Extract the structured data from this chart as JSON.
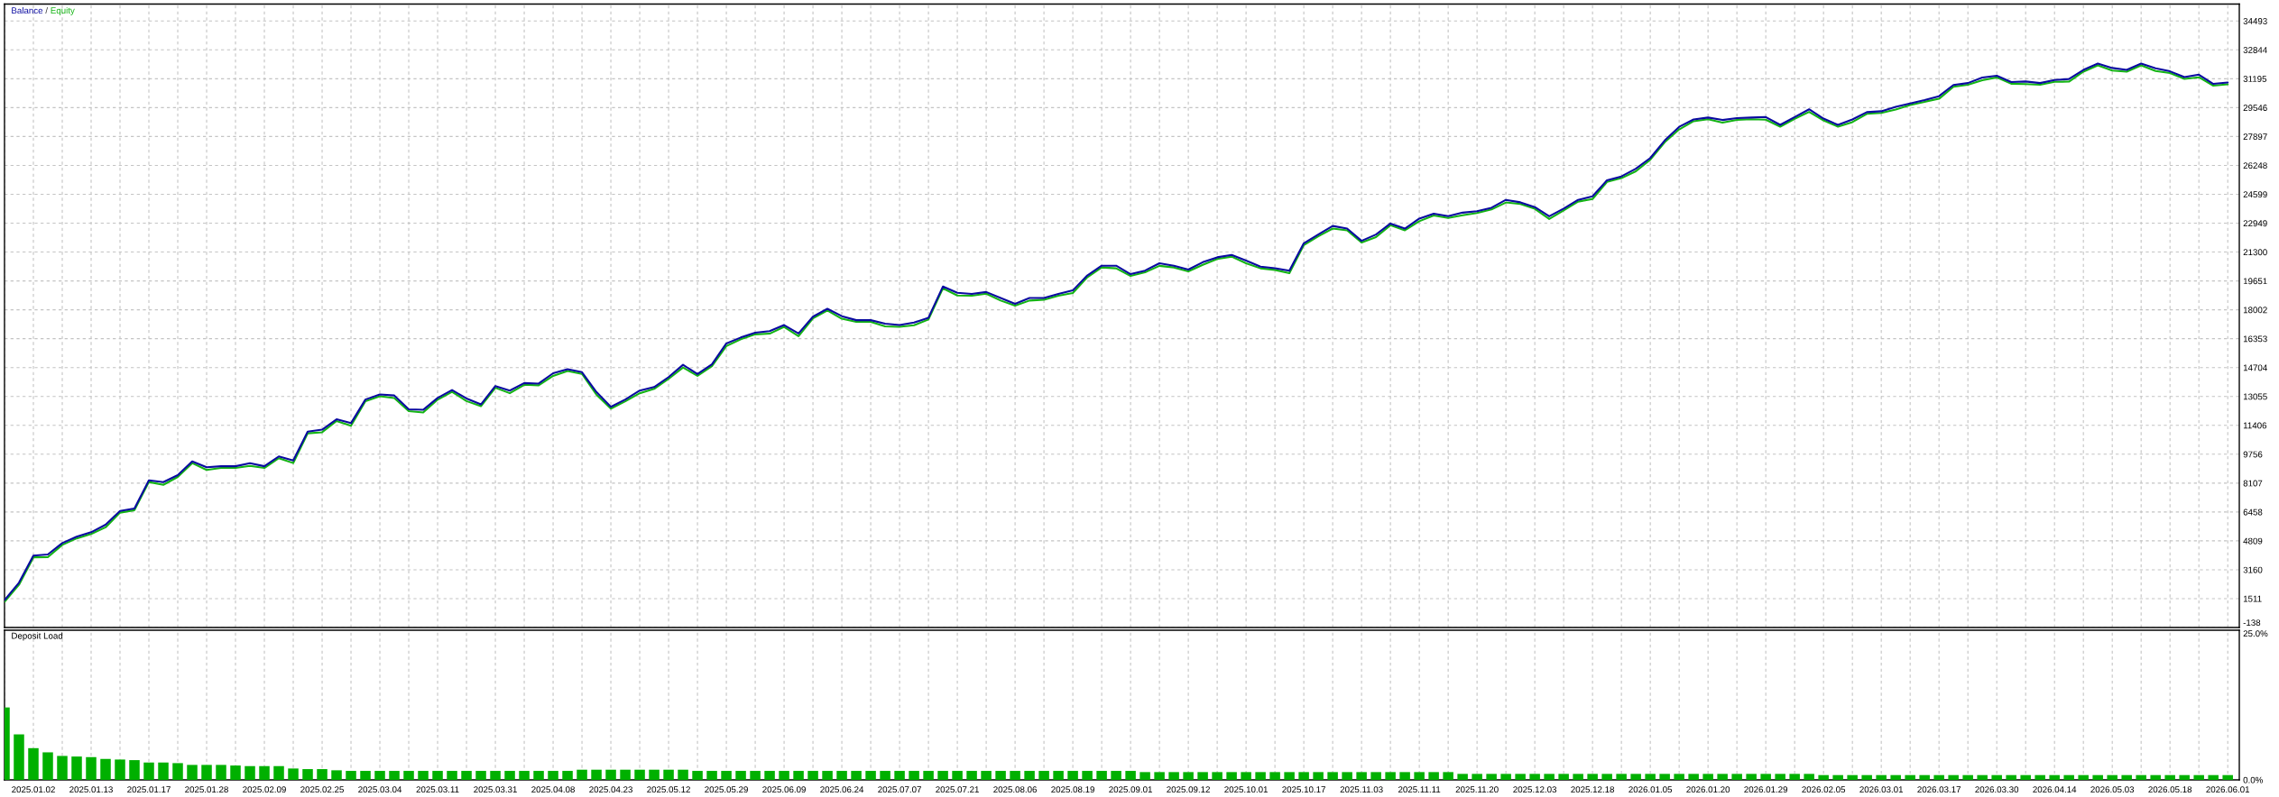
{
  "chart_data": [
    {
      "type": "line",
      "legend": "top left",
      "tick_labels": "y",
      "grid": true,
      "annotations": [
        "/"
      ],
      "categories": [
        null,
        null,
        "2025.01.02",
        null,
        null,
        null,
        "2025.01.13",
        null,
        null,
        null,
        "2025.01.17",
        null,
        null,
        null,
        "2025.01.28",
        null,
        null,
        null,
        "2025.02.09",
        null,
        null,
        null,
        "2025.02.25",
        null,
        null,
        null,
        "2025.03.04",
        null,
        null,
        null,
        "2025.03.11",
        null,
        null,
        null,
        "2025.03.31",
        null,
        null,
        null,
        "2025.04.08",
        null,
        null,
        null,
        "2025.04.23",
        null,
        null,
        null,
        "2025.05.12",
        null,
        null,
        null,
        "2025.05.29",
        null,
        null,
        null,
        "2025.06.09",
        null,
        null,
        null,
        "2025.06.24",
        null,
        null,
        null,
        "2025.07.07",
        null,
        null,
        null,
        "2025.07.21",
        null,
        null,
        null,
        "2025.08.06",
        null,
        null,
        null,
        "2025.08.19",
        null,
        null,
        null,
        "2025.09.01",
        null,
        null,
        null,
        "2025.09.12",
        null,
        null,
        null,
        "2025.10.01",
        null,
        null,
        null,
        "2025.10.17",
        null,
        null,
        null,
        "2025.11.03",
        null,
        null,
        null,
        "2025.11.11",
        null,
        null,
        null,
        "2025.11.20",
        null,
        null,
        null,
        "2025.12.03",
        null,
        null,
        null,
        "2025.12.18",
        null,
        null,
        null,
        "2026.01.05",
        null,
        null,
        null,
        "2026.01.20",
        null,
        null,
        null,
        "2026.01.29",
        null,
        null,
        null,
        "2026.02.05",
        null,
        null,
        null,
        "2026.03.01",
        null,
        null,
        null,
        "2026.03.17",
        null,
        null,
        null,
        "2026.03.30",
        null,
        null,
        null,
        "2026.04.14",
        null,
        null,
        null,
        "2026.05.03",
        null,
        null,
        null,
        "2026.05.18",
        null,
        null,
        null,
        "2026.06.01"
      ],
      "series": [
        {
          "name": "Balance",
          "color": "#0a0aa0",
          "values": [
            1430,
            2420,
            3970,
            4030,
            4680,
            5050,
            5300,
            5730,
            6520,
            6660,
            8270,
            8160,
            8560,
            9350,
            9010,
            9070,
            9070,
            9240,
            9070,
            9630,
            9400,
            11050,
            11160,
            11750,
            11530,
            12880,
            13170,
            13110,
            12320,
            12290,
            12970,
            13420,
            12940,
            12600,
            13650,
            13390,
            13820,
            13790,
            14380,
            14610,
            14440,
            13310,
            12460,
            12880,
            13390,
            13590,
            14160,
            14860,
            14330,
            14890,
            16080,
            16420,
            16700,
            16790,
            17130,
            16650,
            17610,
            18060,
            17640,
            17410,
            17410,
            17210,
            17130,
            17270,
            17550,
            19330,
            18970,
            18910,
            19020,
            18680,
            18340,
            18680,
            18680,
            18910,
            19110,
            19960,
            20520,
            20520,
            20040,
            20240,
            20660,
            20520,
            20300,
            20720,
            21000,
            21140,
            20810,
            20470,
            20380,
            20240,
            21800,
            22300,
            22790,
            22640,
            21940,
            22300,
            22930,
            22640,
            23210,
            23490,
            23350,
            23550,
            23630,
            23830,
            24280,
            24140,
            23870,
            23340,
            23780,
            24280,
            24480,
            25400,
            25620,
            26060,
            26670,
            27670,
            28450,
            28870,
            28980,
            28840,
            28950,
            28980,
            29010,
            28560,
            29010,
            29450,
            28920,
            28560,
            28870,
            29290,
            29340,
            29590,
            29790,
            29980,
            30200,
            30840,
            30950,
            31260,
            31370,
            31010,
            31040,
            30950,
            31120,
            31180,
            31700,
            32060,
            31810,
            31700,
            32060,
            31790,
            31620,
            31290,
            31430,
            30900,
            30980
          ]
        },
        {
          "name": "Equity",
          "color": "#14b414",
          "values": [
            1330,
            2300,
            3870,
            3880,
            4580,
            4950,
            5200,
            5580,
            6420,
            6560,
            8170,
            8010,
            8460,
            9250,
            8860,
            8970,
            8970,
            9090,
            8970,
            9530,
            9250,
            10950,
            11010,
            11650,
            11380,
            12780,
            13070,
            12960,
            12220,
            12140,
            12870,
            13320,
            12790,
            12500,
            13550,
            13240,
            13720,
            13690,
            14230,
            14510,
            14340,
            13160,
            12360,
            12780,
            13240,
            13490,
            14060,
            14710,
            14230,
            14790,
            15930,
            16320,
            16600,
            16640,
            17030,
            16500,
            17510,
            17960,
            17490,
            17310,
            17310,
            17060,
            17030,
            17120,
            17450,
            19230,
            18820,
            18810,
            18920,
            18530,
            18240,
            18530,
            18580,
            18810,
            18960,
            19860,
            20420,
            20370,
            19940,
            20140,
            20510,
            20420,
            20200,
            20570,
            20900,
            21040,
            20660,
            20370,
            20280,
            20090,
            21700,
            22200,
            22640,
            22540,
            21840,
            22150,
            22830,
            22540,
            23060,
            23390,
            23250,
            23400,
            23530,
            23730,
            24130,
            24040,
            23770,
            23190,
            23680,
            24180,
            24330,
            25300,
            25520,
            25910,
            26570,
            27570,
            28300,
            28770,
            28880,
            28690,
            28850,
            28880,
            28860,
            28460,
            28910,
            29300,
            28820,
            28460,
            28720,
            29190,
            29240,
            29440,
            29690,
            29880,
            30050,
            30740,
            30850,
            31110,
            31270,
            30910,
            30890,
            30850,
            31020,
            31030,
            31600,
            31960,
            31660,
            31600,
            31960,
            31640,
            31520,
            31190,
            31280,
            30800,
            30880
          ]
        }
      ],
      "ylim": [
        -138,
        35460
      ],
      "yticks": [
        -138,
        1511,
        3160,
        4809,
        6458,
        8107,
        9756,
        11406,
        13055,
        14704,
        16353,
        18002,
        19651,
        21300,
        22949,
        24599,
        26248,
        27897,
        29546,
        31195,
        32844,
        34493
      ]
    },
    {
      "type": "bar",
      "title": "Deposit Load",
      "grid": "x",
      "color": "#00b000",
      "categories": [
        null,
        null,
        "2025.01.02",
        null,
        null,
        null,
        "2025.01.13",
        null,
        null,
        null,
        "2025.01.17",
        null,
        null,
        null,
        "2025.01.28",
        null,
        null,
        null,
        "2025.02.09",
        null,
        null,
        null,
        "2025.02.25",
        null,
        null,
        null,
        "2025.03.04",
        null,
        null,
        null,
        "2025.03.11",
        null,
        null,
        null,
        "2025.03.31",
        null,
        null,
        null,
        "2025.04.08",
        null,
        null,
        null,
        "2025.04.23",
        null,
        null,
        null,
        "2025.05.12",
        null,
        null,
        null,
        "2025.05.29",
        null,
        null,
        null,
        "2025.06.09",
        null,
        null,
        null,
        "2025.06.24",
        null,
        null,
        null,
        "2025.07.07",
        null,
        null,
        null,
        "2025.07.21",
        null,
        null,
        null,
        "2025.08.06",
        null,
        null,
        null,
        "2025.08.19",
        null,
        null,
        null,
        "2025.09.01",
        null,
        null,
        null,
        "2025.09.12",
        null,
        null,
        null,
        "2025.10.01",
        null,
        null,
        null,
        "2025.10.17",
        null,
        null,
        null,
        "2025.11.03",
        null,
        null,
        null,
        "2025.11.11",
        null,
        null,
        null,
        "2025.11.20",
        null,
        null,
        null,
        "2025.12.03",
        null,
        null,
        null,
        "2025.12.18",
        null,
        null,
        null,
        "2026.01.05",
        null,
        null,
        null,
        "2026.01.20",
        null,
        null,
        null,
        "2026.01.29",
        null,
        null,
        null,
        "2026.02.05",
        null,
        null,
        null,
        "2026.03.01",
        null,
        null,
        null,
        "2026.03.17",
        null,
        null,
        null,
        "2026.03.30",
        null,
        null,
        null,
        "2026.04.14",
        null,
        null,
        null,
        "2026.05.03",
        null,
        null,
        null,
        "2026.05.18",
        null,
        null,
        null,
        "2026.06.01"
      ],
      "values": [
        12.1,
        7.6,
        5.3,
        4.6,
        4.0,
        3.9,
        3.8,
        3.5,
        3.4,
        3.3,
        2.9,
        2.9,
        2.8,
        2.5,
        2.5,
        2.5,
        2.4,
        2.3,
        2.3,
        2.3,
        1.9,
        1.8,
        1.8,
        1.6,
        1.5,
        1.5,
        1.5,
        1.5,
        1.5,
        1.5,
        1.5,
        1.5,
        1.5,
        1.5,
        1.5,
        1.5,
        1.5,
        1.5,
        1.5,
        1.5,
        1.7,
        1.7,
        1.7,
        1.7,
        1.7,
        1.7,
        1.7,
        1.7,
        1.5,
        1.5,
        1.5,
        1.5,
        1.5,
        1.5,
        1.5,
        1.5,
        1.5,
        1.5,
        1.5,
        1.5,
        1.5,
        1.5,
        1.5,
        1.5,
        1.5,
        1.5,
        1.5,
        1.5,
        1.5,
        1.5,
        1.5,
        1.5,
        1.5,
        1.5,
        1.5,
        1.5,
        1.5,
        1.5,
        1.5,
        1.3,
        1.3,
        1.3,
        1.3,
        1.3,
        1.3,
        1.3,
        1.3,
        1.3,
        1.3,
        1.3,
        1.3,
        1.3,
        1.3,
        1.3,
        1.3,
        1.3,
        1.3,
        1.3,
        1.3,
        1.3,
        1.3,
        1.0,
        1.0,
        1.0,
        1.0,
        1.0,
        1.0,
        1.0,
        1.0,
        1.0,
        1.0,
        1.0,
        1.0,
        1.0,
        1.0,
        1.0,
        1.0,
        1.0,
        1.0,
        1.0,
        1.0,
        1.0,
        1.0,
        1.0,
        1.0,
        1.0,
        0.8,
        0.8,
        0.8,
        0.8,
        0.8,
        0.8,
        0.8,
        0.8,
        0.8,
        0.8,
        0.8,
        0.8,
        0.8,
        0.8,
        0.8,
        0.8,
        0.8,
        0.8,
        0.8,
        0.8,
        0.8,
        0.8,
        0.8,
        0.8,
        0.8,
        0.8,
        0.8,
        0.8,
        0.8
      ],
      "ylim": [
        0,
        25
      ],
      "yticks": [
        {
          "value": 0,
          "label": "0.0%"
        },
        {
          "value": 25,
          "label": "25.0%"
        }
      ]
    }
  ]
}
